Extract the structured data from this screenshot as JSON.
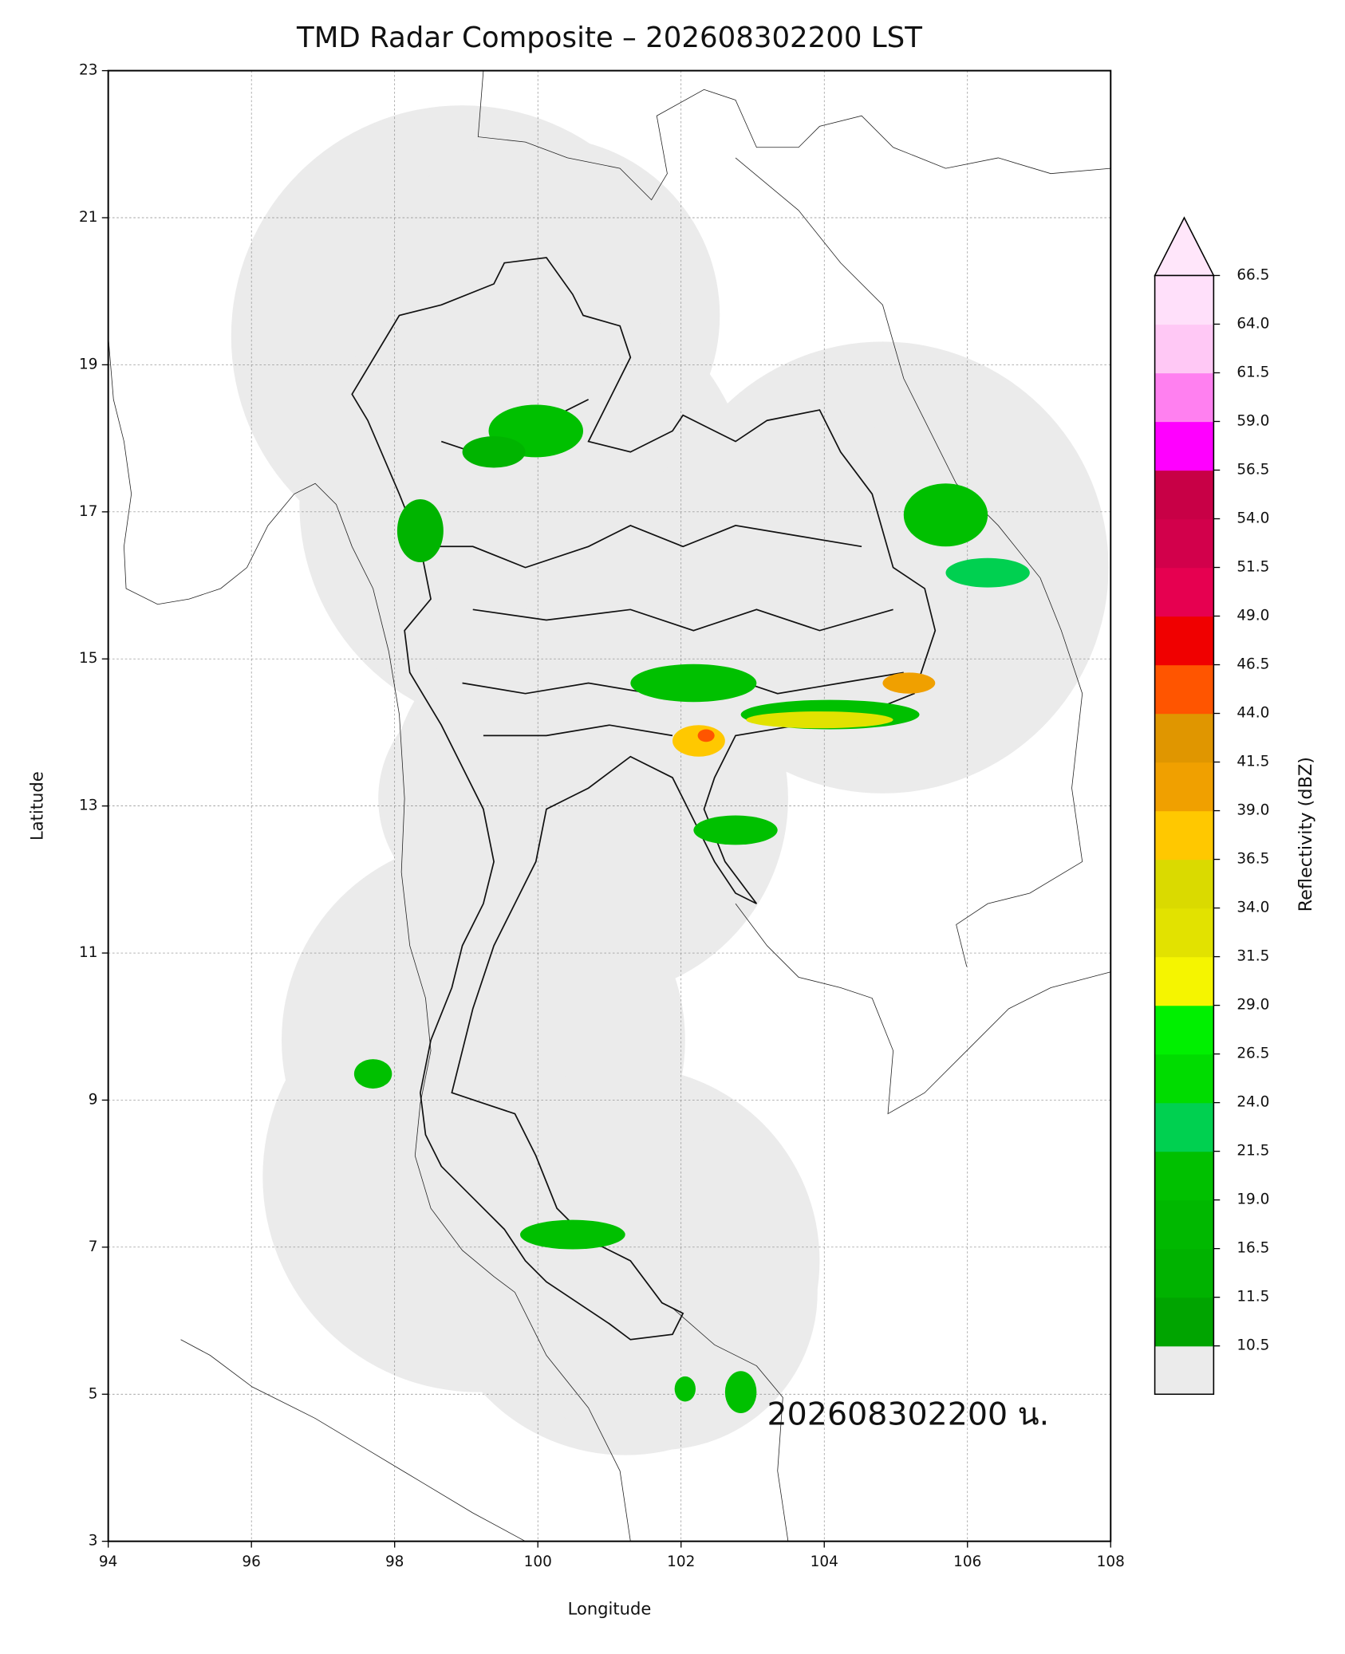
{
  "chart_data": {
    "type": "map",
    "title": "TMD Radar Composite – 202608302200 LST",
    "x_label": "Longitude",
    "y_label": "Latitude",
    "xlim": [
      94,
      108
    ],
    "xticks": [
      94,
      96,
      98,
      100,
      102,
      104,
      106,
      108
    ],
    "ylim": [
      3,
      23
    ],
    "yticks": [
      3,
      5,
      7,
      9,
      11,
      13,
      15,
      17,
      19,
      21,
      23
    ],
    "grid": true,
    "annotation": "202608302200 น.",
    "colorbar": {
      "label": "Reflectivity (dBZ)",
      "ticks": [
        10.5,
        11.5,
        16.5,
        {
          "value": 19,
          "label": "19.0"
        },
        21.5,
        {
          "value": 24,
          "label": "24.0"
        },
        26.5,
        {
          "value": 29,
          "label": "29.0"
        },
        31.5,
        {
          "value": 34,
          "label": "34.0"
        },
        36.5,
        {
          "value": 39,
          "label": "39.0"
        },
        41.5,
        {
          "value": 44,
          "label": "44.0"
        },
        46.5,
        {
          "value": 49,
          "label": "49.0"
        },
        51.5,
        {
          "value": 54,
          "label": "54.0"
        },
        56.5,
        {
          "value": 59,
          "label": "59.0"
        },
        61.5,
        {
          "value": 64,
          "label": "64.0"
        },
        66.5
      ],
      "colors": [
        "#00a400",
        "#00b200",
        "#00b800",
        "#00c000",
        "#00d050",
        "#00dc00",
        "#00f000",
        "#f5f500",
        "#e2e200",
        "#dada00",
        "#ffc800",
        "#f0a000",
        "#e09600",
        "#ff5500",
        "#f00000",
        "#e60050",
        "#d2004b",
        "#c80046",
        "#ff00ff",
        "#ff80f0",
        "#ffc8f5",
        "#ffe0fa"
      ],
      "under_color": "#ebebeb",
      "over_color": "#ffe6fa"
    }
  }
}
